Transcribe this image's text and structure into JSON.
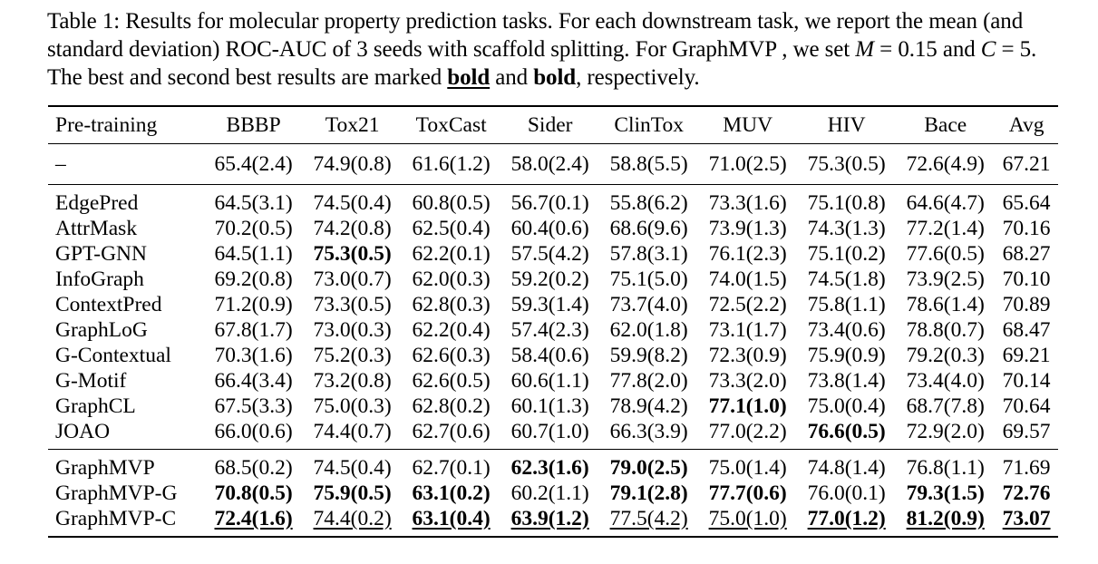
{
  "caption": {
    "p1": "Table 1: Results for molecular property prediction tasks. For each downstream task, we report the mean (and standard deviation) ROC-AUC of 3 seeds with scaffold splitting. For GraphMVP , we set ",
    "m_var": "M",
    "m_eq": " = 0.15 and ",
    "c_var": "C",
    "c_eq": " = 5. The best and second best results are marked ",
    "best_word": "bold",
    "mid": " and ",
    "second_word": "bold",
    "end": ", respectively."
  },
  "table": {
    "headers": [
      "Pre-training",
      "BBBP",
      "Tox21",
      "ToxCast",
      "Sider",
      "ClinTox",
      "MUV",
      "HIV",
      "Bace",
      "Avg"
    ],
    "groups": [
      [
        [
          "–",
          "65.4(2.4)",
          "74.9(0.8)",
          "61.6(1.2)",
          "58.0(2.4)",
          "58.8(5.5)",
          "71.0(2.5)",
          "75.3(0.5)",
          "72.6(4.9)",
          "67.21"
        ]
      ],
      [
        [
          "EdgePred",
          "64.5(3.1)",
          "74.5(0.4)",
          "60.8(0.5)",
          "56.7(0.1)",
          "55.8(6.2)",
          "73.3(1.6)",
          "75.1(0.8)",
          "64.6(4.7)",
          "65.64"
        ],
        [
          "AttrMask",
          "70.2(0.5)",
          "74.2(0.8)",
          "62.5(0.4)",
          "60.4(0.6)",
          "68.6(9.6)",
          "73.9(1.3)",
          "74.3(1.3)",
          "77.2(1.4)",
          "70.16"
        ],
        [
          "GPT-GNN",
          "64.5(1.1)",
          "75.3(0.5)",
          "62.2(0.1)",
          "57.5(4.2)",
          "57.8(3.1)",
          "76.1(2.3)",
          "75.1(0.2)",
          "77.6(0.5)",
          "68.27"
        ],
        [
          "InfoGraph",
          "69.2(0.8)",
          "73.0(0.7)",
          "62.0(0.3)",
          "59.2(0.2)",
          "75.1(5.0)",
          "74.0(1.5)",
          "74.5(1.8)",
          "73.9(2.5)",
          "70.10"
        ],
        [
          "ContextPred",
          "71.2(0.9)",
          "73.3(0.5)",
          "62.8(0.3)",
          "59.3(1.4)",
          "73.7(4.0)",
          "72.5(2.2)",
          "75.8(1.1)",
          "78.6(1.4)",
          "70.89"
        ],
        [
          "GraphLoG",
          "67.8(1.7)",
          "73.0(0.3)",
          "62.2(0.4)",
          "57.4(2.3)",
          "62.0(1.8)",
          "73.1(1.7)",
          "73.4(0.6)",
          "78.8(0.7)",
          "68.47"
        ],
        [
          "G-Contextual",
          "70.3(1.6)",
          "75.2(0.3)",
          "62.6(0.3)",
          "58.4(0.6)",
          "59.9(8.2)",
          "72.3(0.9)",
          "75.9(0.9)",
          "79.2(0.3)",
          "69.21"
        ],
        [
          "G-Motif",
          "66.4(3.4)",
          "73.2(0.8)",
          "62.6(0.5)",
          "60.6(1.1)",
          "77.8(2.0)",
          "73.3(2.0)",
          "73.8(1.4)",
          "73.4(4.0)",
          "70.14"
        ],
        [
          "GraphCL",
          "67.5(3.3)",
          "75.0(0.3)",
          "62.8(0.2)",
          "60.1(1.3)",
          "78.9(4.2)",
          "77.1(1.0)",
          "75.0(0.4)",
          "68.7(7.8)",
          "70.64"
        ],
        [
          "JOAO",
          "66.0(0.6)",
          "74.4(0.7)",
          "62.7(0.6)",
          "60.7(1.0)",
          "66.3(3.9)",
          "77.0(2.2)",
          "76.6(0.5)",
          "72.9(2.0)",
          "69.57"
        ]
      ],
      [
        [
          "GraphMVP",
          "68.5(0.2)",
          "74.5(0.4)",
          "62.7(0.1)",
          "62.3(1.6)",
          "79.0(2.5)",
          "75.0(1.4)",
          "74.8(1.4)",
          "76.8(1.1)",
          "71.69"
        ],
        [
          "GraphMVP-G",
          "70.8(0.5)",
          "75.9(0.5)",
          "63.1(0.2)",
          "60.2(1.1)",
          "79.1(2.8)",
          "77.7(0.6)",
          "76.0(0.1)",
          "79.3(1.5)",
          "72.76"
        ],
        [
          "GraphMVP-C",
          "72.4(1.6)",
          "74.4(0.2)",
          "63.1(0.4)",
          "63.9(1.2)",
          "77.5(4.2)",
          "75.0(1.0)",
          "77.0(1.2)",
          "81.2(0.9)",
          "73.07"
        ]
      ]
    ],
    "styles": [
      [
        [
          "",
          "",
          "",
          "",
          "",
          "",
          "",
          "",
          "",
          ""
        ]
      ],
      [
        [
          "",
          "",
          "",
          "",
          "",
          "",
          "",
          "",
          "",
          ""
        ],
        [
          "",
          "",
          "",
          "",
          "",
          "",
          "",
          "",
          "",
          ""
        ],
        [
          "",
          "",
          "b",
          "",
          "",
          "",
          "",
          "",
          "",
          ""
        ],
        [
          "",
          "",
          "",
          "",
          "",
          "",
          "",
          "",
          "",
          ""
        ],
        [
          "",
          "",
          "",
          "",
          "",
          "",
          "",
          "",
          "",
          ""
        ],
        [
          "",
          "",
          "",
          "",
          "",
          "",
          "",
          "",
          "",
          ""
        ],
        [
          "",
          "",
          "",
          "",
          "",
          "",
          "",
          "",
          "",
          ""
        ],
        [
          "",
          "",
          "",
          "",
          "",
          "",
          "",
          "",
          "",
          ""
        ],
        [
          "",
          "",
          "",
          "",
          "",
          "",
          "b",
          "",
          "",
          ""
        ],
        [
          "",
          "",
          "",
          "",
          "",
          "",
          "",
          "b",
          "",
          ""
        ]
      ],
      [
        [
          "",
          "",
          "",
          "",
          "b",
          "b",
          "",
          "",
          "",
          ""
        ],
        [
          "",
          "b",
          "b",
          "b",
          "",
          "b",
          "b",
          "",
          "b",
          "b"
        ],
        [
          "",
          "bu",
          "u",
          "bu",
          "bu",
          "u",
          "u",
          "bu",
          "bu",
          "bu"
        ]
      ]
    ]
  }
}
